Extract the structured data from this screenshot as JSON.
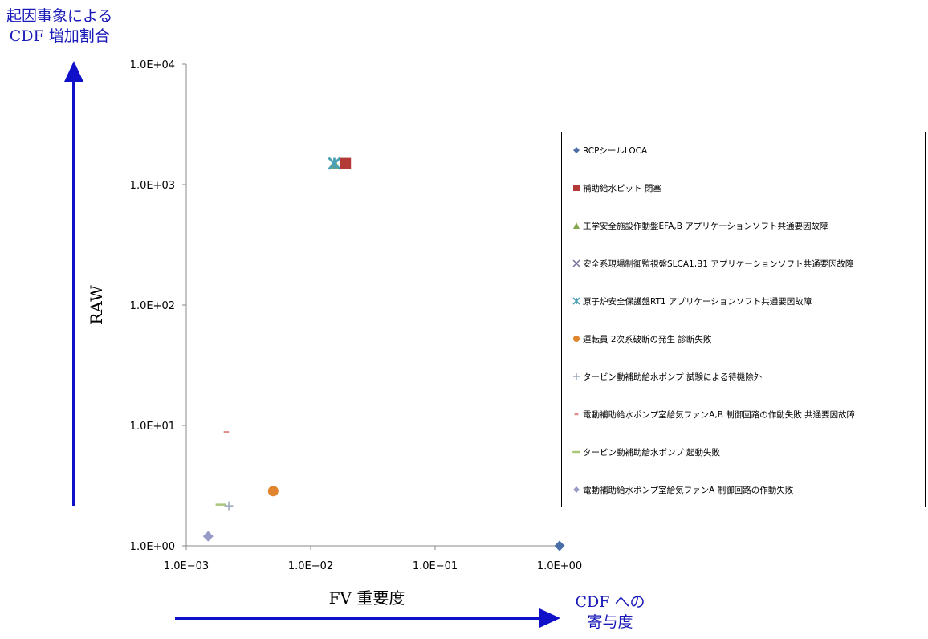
{
  "annotations": {
    "y_arrow_label_line1": "起因事象による",
    "y_arrow_label_line2": "CDF 増加割合",
    "x_arrow_label_line1": "CDF への",
    "x_arrow_label_line2": "寄与度"
  },
  "colors": {
    "arrow": "#1010c8"
  },
  "chart_data": {
    "type": "scatter",
    "xlabel": "FV 重要度",
    "ylabel": "RAW",
    "x_scale": "log",
    "y_scale": "log",
    "xlim": [
      0.001,
      1.0
    ],
    "ylim": [
      1.0,
      10000.0
    ],
    "x_ticks": [
      "1.0E−03",
      "1.0E−02",
      "1.0E−01",
      "1.0E+00"
    ],
    "y_ticks": [
      "1.0E+00",
      "1.0E+01",
      "1.0E+02",
      "1.0E+03",
      "1.0E+04"
    ],
    "grid": false,
    "legend_position": "right",
    "series": [
      {
        "name": "RCPシールLOCA",
        "marker": "diamond",
        "color": "#4a6ea8",
        "points": [
          [
            1.0,
            1.0
          ]
        ]
      },
      {
        "name": "補助給水ピット 閉塞",
        "marker": "square",
        "color": "#b33a36",
        "points": [
          [
            0.019,
            1500
          ]
        ]
      },
      {
        "name": "工学安全施設作動盤EFA,B アプリケーションソフト共通要因故障",
        "marker": "triangle",
        "color": "#86a84c",
        "points": [
          [
            0.0155,
            1500
          ]
        ]
      },
      {
        "name": "安全系現場制御監視盤SLCA1,B1 アプリケーションソフト共通要因故障",
        "marker": "x",
        "color": "#7a6a9a",
        "points": [
          [
            0.0155,
            1500
          ]
        ]
      },
      {
        "name": "原子炉安全保護盤RT1 アプリケーションソフト共通要因故障",
        "marker": "star",
        "color": "#4aa0b4",
        "points": [
          [
            0.0155,
            1500
          ]
        ]
      },
      {
        "name": "運転員 2次系破断の発生 診断失敗",
        "marker": "circle",
        "color": "#e0852e",
        "points": [
          [
            0.005,
            2.85
          ]
        ]
      },
      {
        "name": "タービン動補助給水ポンプ 試験による待機除外",
        "marker": "plus",
        "color": "#9aa8bc",
        "points": [
          [
            0.0022,
            2.15
          ]
        ]
      },
      {
        "name": "電動補助給水ポンプ室給気ファンA,B 制御回路の作動失敗 共通要因故障",
        "marker": "dash",
        "color": "#e08a8a",
        "points": [
          [
            0.0021,
            8.8
          ]
        ]
      },
      {
        "name": "タービン動補助給水ポンプ 起動失敗",
        "marker": "longdash",
        "color": "#a8c878",
        "points": [
          [
            0.0019,
            2.2
          ]
        ]
      },
      {
        "name": "電動補助給水ポンプ室給気ファンA 制御回路の作動失敗",
        "marker": "diamond",
        "color": "#9a9ac8",
        "points": [
          [
            0.0015,
            1.2
          ]
        ]
      }
    ]
  }
}
